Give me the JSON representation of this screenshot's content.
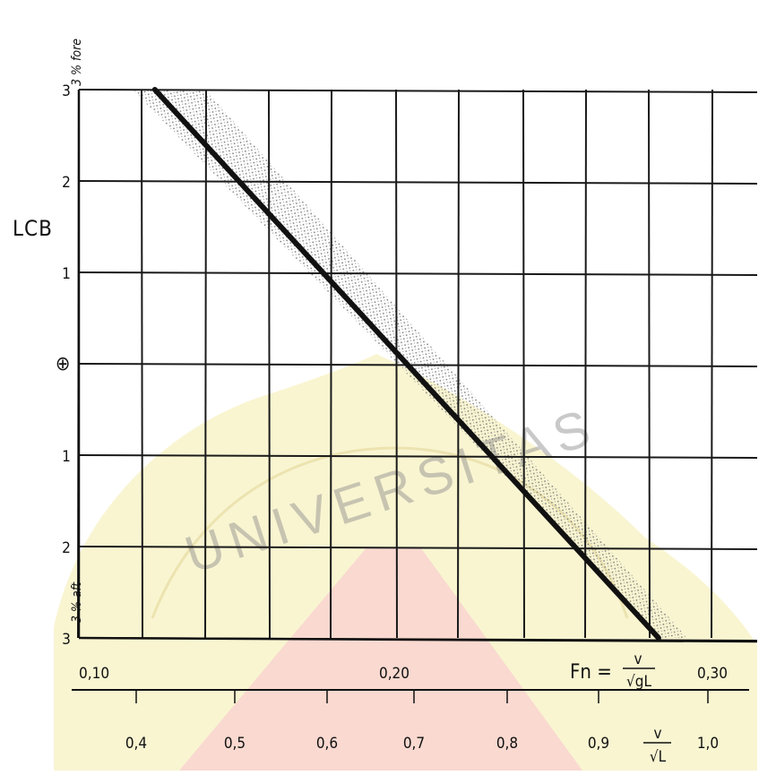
{
  "chart_data": {
    "type": "line",
    "y_label": "LCB",
    "y_top_end_label": "3 % fore",
    "y_bottom_end_label": "3 % aft",
    "y_midship_symbol": "⊕",
    "y_ticks": [
      "3",
      "2",
      "1",
      "⊕",
      "1",
      "2",
      "3"
    ],
    "y_values": [
      3,
      2,
      1,
      0,
      -1,
      -2,
      -3
    ],
    "x_primary_ticks": [
      "0,10",
      "0,20",
      "0,30"
    ],
    "x_primary_label": "Fn =",
    "x_primary_fraction": {
      "num": "v",
      "den": "√gL"
    },
    "x_secondary_ticks": [
      "0,4",
      "0,5",
      "0,6",
      "0,7",
      "0,8",
      "0,9",
      "1,0"
    ],
    "x_secondary_fraction": {
      "num": "v",
      "den": "√L"
    },
    "x_range": [
      0.1,
      0.3
    ],
    "y_range": [
      -3,
      3
    ],
    "series": [
      {
        "x": [
          0.124,
          0.283
        ],
        "y": [
          3,
          -3
        ]
      }
    ],
    "band": {
      "upper_edge": {
        "x": [
          0.117,
          0.284
        ],
        "y": [
          3,
          -3
        ]
      },
      "lower_edge": {
        "x": [
          0.14,
          0.292
        ],
        "y": [
          3,
          -3
        ]
      }
    },
    "grid": true,
    "colors": {
      "line": "#111111",
      "grid": "#1a1a1a",
      "band": "#9a9a9a",
      "watermark_yellow": "#f7f1c2",
      "watermark_red": "#f8cfcf"
    }
  },
  "watermark_text": "UNIVERSITAS"
}
